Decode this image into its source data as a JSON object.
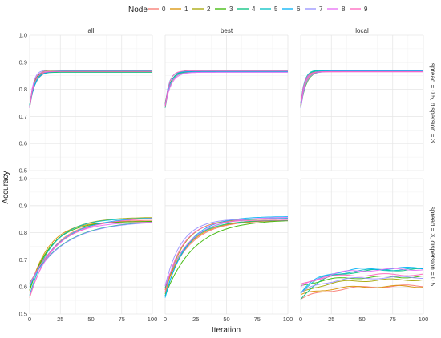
{
  "chart_data": {
    "type": "line",
    "legend": {
      "title": "Node",
      "placement": "top",
      "entries": [
        "0",
        "1",
        "2",
        "3",
        "4",
        "5",
        "6",
        "7",
        "8",
        "9"
      ],
      "colors": [
        "#F8766D",
        "#D89000",
        "#A3A500",
        "#39B600",
        "#00BF7D",
        "#00BFC4",
        "#00B0F6",
        "#9590FF",
        "#E76BF3",
        "#FF62BC"
      ]
    },
    "xlabel": "Iteration",
    "ylabel": "Accuracy",
    "xlim": [
      0,
      100
    ],
    "ylim": [
      0.5,
      1.0
    ],
    "x_ticks": [
      "0",
      "25",
      "50",
      "75",
      "100"
    ],
    "y_ticks": [
      "0.5",
      "0.6",
      "0.7",
      "0.8",
      "0.9",
      "1.0"
    ],
    "grid": true,
    "columns": [
      "all",
      "best",
      "local"
    ],
    "rows": [
      "spread = 0.5, dispersion = 3",
      "spread = 3, dispersion = 0.5"
    ],
    "panels": [
      {
        "row": 0,
        "col": 0,
        "start": [
          0.73,
          0.75
        ],
        "final": [
          0.862,
          0.872
        ],
        "speed": 0.28
      },
      {
        "row": 0,
        "col": 1,
        "start": [
          0.73,
          0.75
        ],
        "final": [
          0.862,
          0.872
        ],
        "speed": 0.28
      },
      {
        "row": 0,
        "col": 2,
        "start": [
          0.73,
          0.75
        ],
        "final": [
          0.862,
          0.872
        ],
        "speed": 0.28
      },
      {
        "row": 1,
        "col": 0,
        "start": [
          0.56,
          0.62
        ],
        "final": [
          0.84,
          0.86
        ],
        "speed": 0.05
      },
      {
        "row": 1,
        "col": 1,
        "start": [
          0.56,
          0.62
        ],
        "final": [
          0.845,
          0.865
        ],
        "speed": 0.06
      },
      {
        "row": 1,
        "col": 2,
        "start": [
          0.55,
          0.61
        ],
        "final": [
          0.6,
          0.672
        ],
        "speed": 0.05
      }
    ]
  }
}
